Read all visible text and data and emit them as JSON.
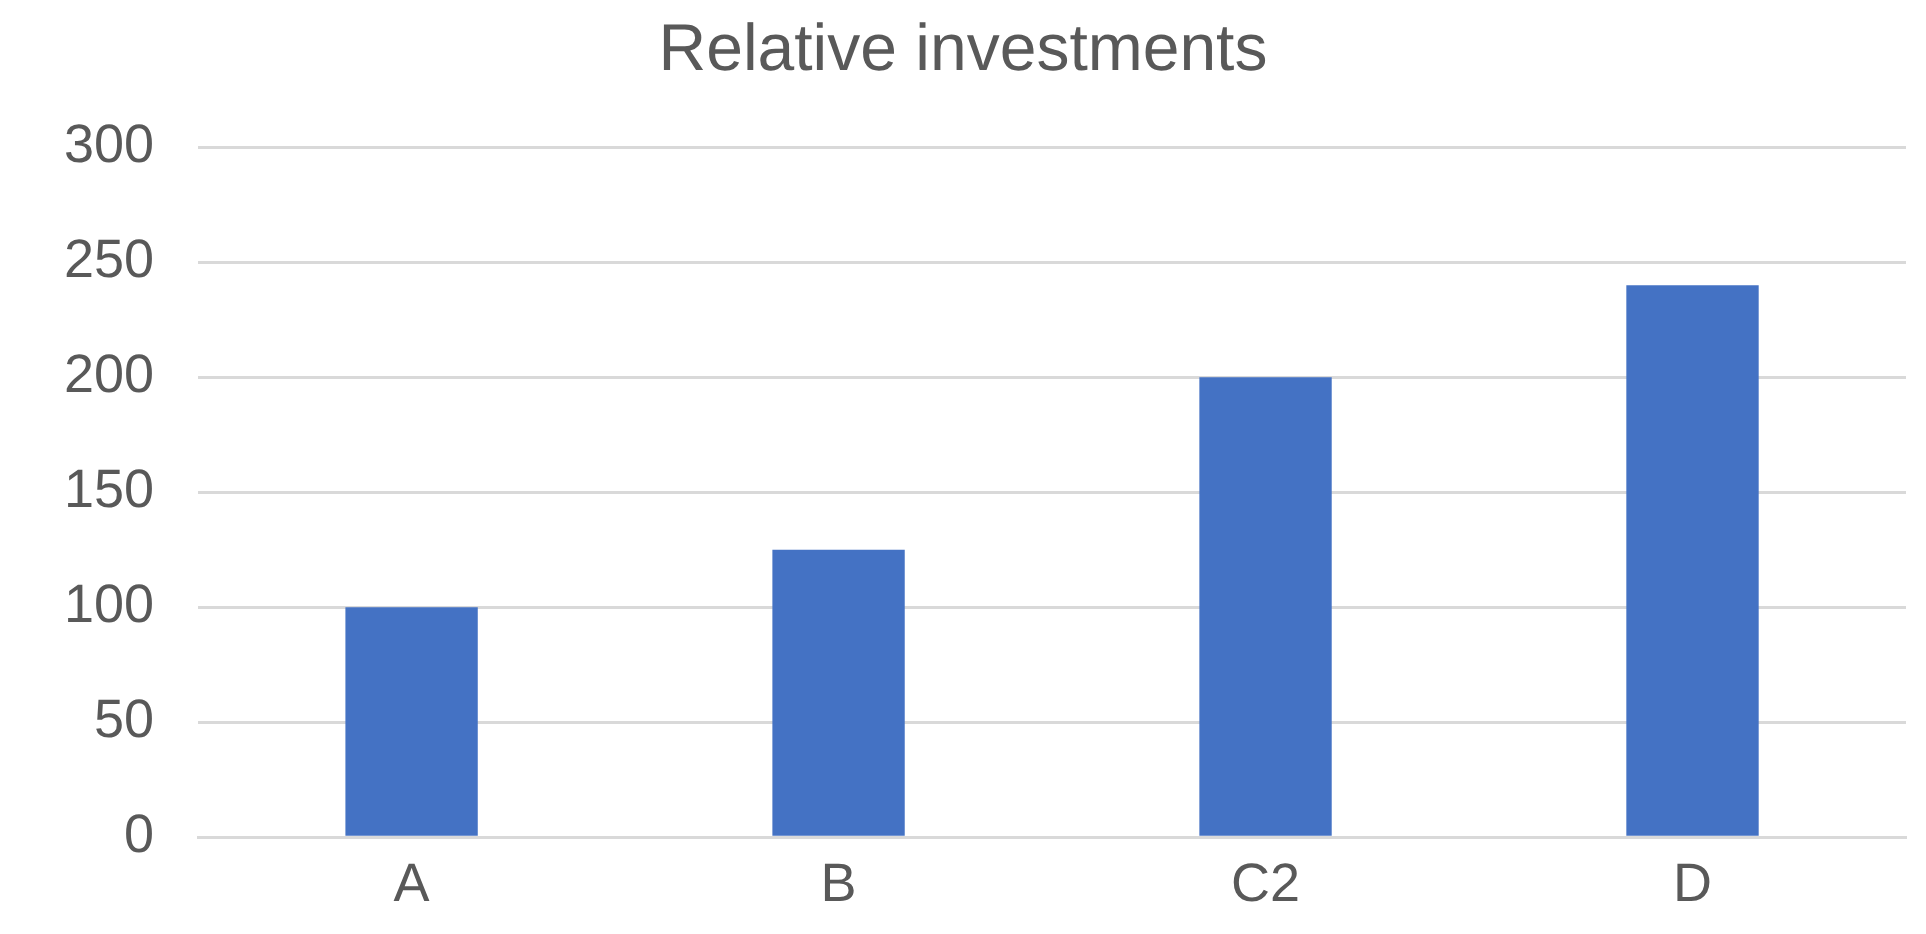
{
  "chart_data": {
    "type": "bar",
    "title": "Relative investments",
    "categories": [
      "A",
      "B",
      "C2",
      "D"
    ],
    "values": [
      100,
      125,
      200,
      240
    ],
    "color": "#4472c4",
    "ylim": [
      0,
      300
    ],
    "yticks": [
      0,
      50,
      100,
      150,
      200,
      250,
      300
    ],
    "grid": "y"
  }
}
